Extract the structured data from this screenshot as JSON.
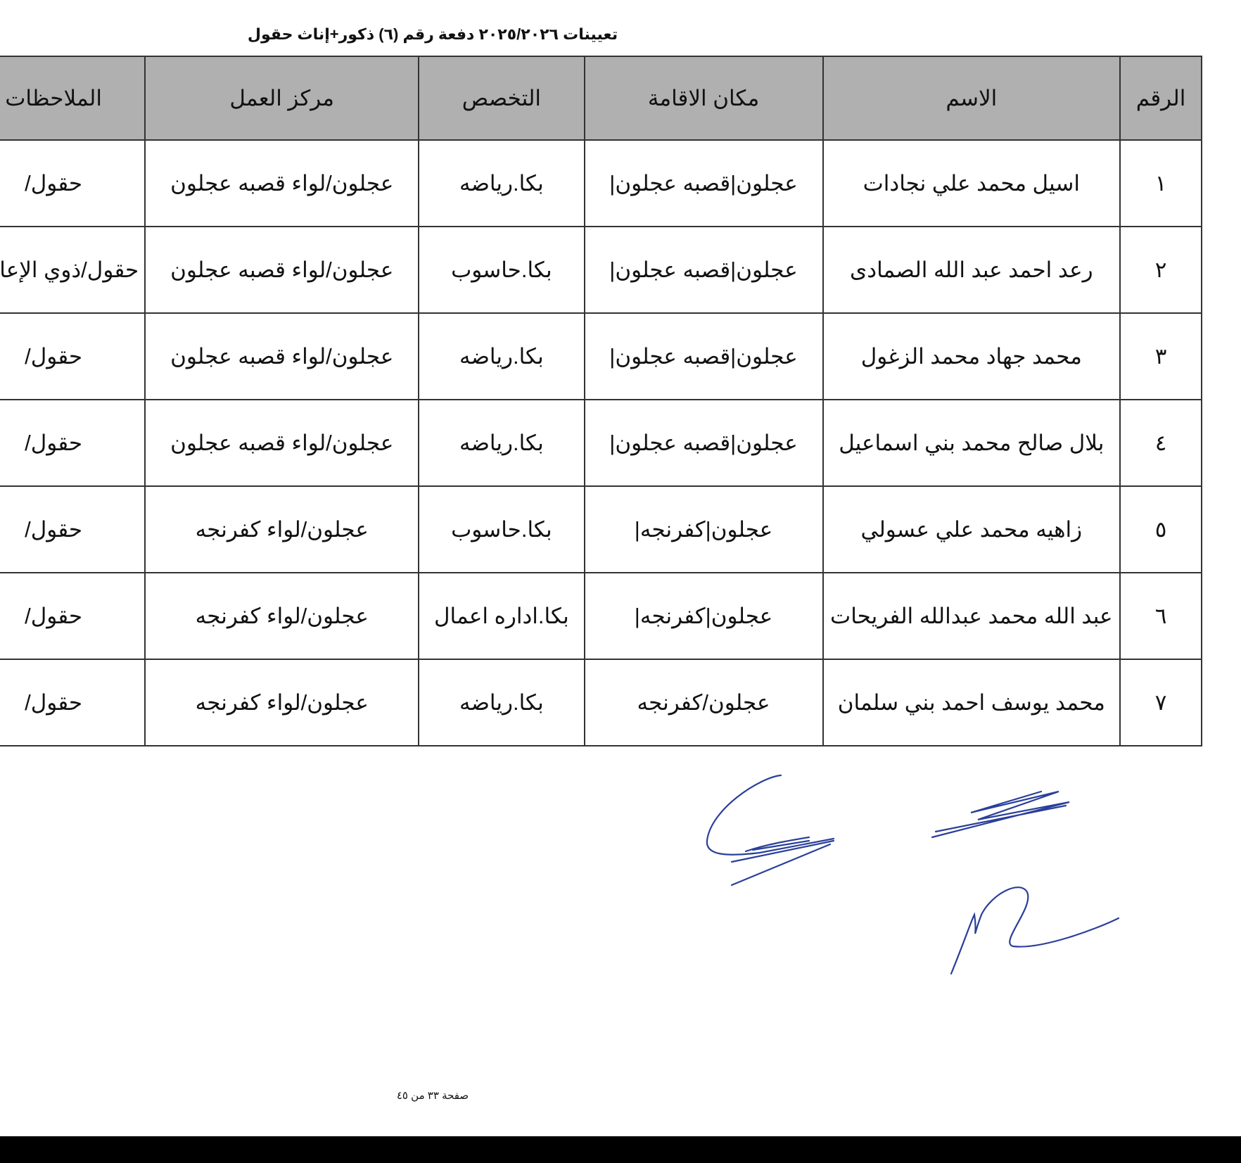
{
  "title": "تعيينات ٢٠٢٥/٢٠٢٦ دفعة رقم (٦) ذكور+إناث حقول",
  "table": {
    "headers": [
      "الرقم",
      "الاسم",
      "مكان الاقامة",
      "التخصص",
      "مركز العمل",
      "الملاحظات"
    ],
    "rows": [
      [
        "١",
        "اسيل محمد علي نجادات",
        "عجلون|قصبه عجلون|",
        "بكا.رياضه",
        "عجلون/لواء قصبه عجلون",
        "حقول/"
      ],
      [
        "٢",
        "رعد احمد عبد الله الصمادى",
        "عجلون|قصبه عجلون|",
        "بكا.حاسوب",
        "عجلون/لواء قصبه عجلون",
        "حقول/ذوي الإعاقة"
      ],
      [
        "٣",
        "محمد جهاد محمد الزغول",
        "عجلون|قصبه عجلون|",
        "بكا.رياضه",
        "عجلون/لواء قصبه عجلون",
        "حقول/"
      ],
      [
        "٤",
        "بلال صالح محمد بني اسماعيل",
        "عجلون|قصبه عجلون|",
        "بكا.رياضه",
        "عجلون/لواء قصبه عجلون",
        "حقول/"
      ],
      [
        "٥",
        "زاهيه محمد علي عسولي",
        "عجلون|كفرنجه|",
        "بكا.حاسوب",
        "عجلون/لواء كفرنجه",
        "حقول/"
      ],
      [
        "٦",
        "عبد الله محمد عبدالله الفريحات",
        "عجلون|كفرنجه|",
        "بكا.اداره اعمال",
        "عجلون/لواء كفرنجه",
        "حقول/"
      ],
      [
        "٧",
        "محمد يوسف احمد بني سلمان",
        "عجلون/كفرنجه",
        "بكا.رياضه",
        "عجلون/لواء كفرنجه",
        "حقول/"
      ]
    ]
  },
  "footer": {
    "page": "صفحة ٣٣ من ٤٥"
  },
  "colors": {
    "header_bg": "#b0b0b0",
    "signature_ink": "#2a3f9a"
  }
}
